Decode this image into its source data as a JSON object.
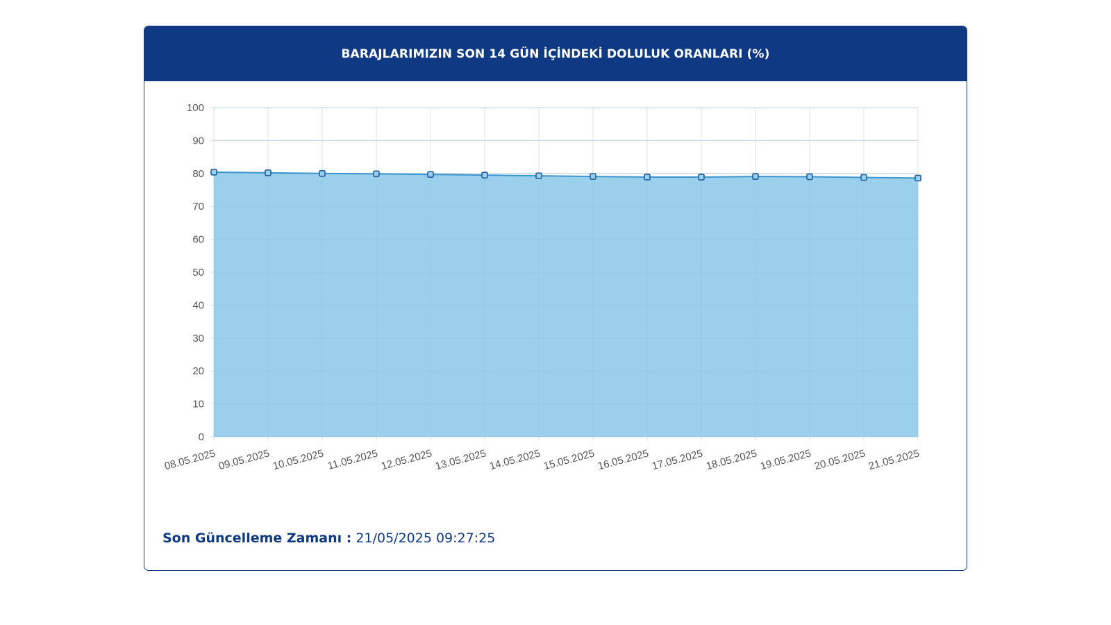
{
  "header": {
    "title": "BARAJLARIMIZIN SON 14 GÜN İÇİNDEKİ DOLULUK ORANLARI (%)"
  },
  "colors": {
    "header_bg": "#0f3a83",
    "area_fill": "#9bd0ec",
    "line": "#3a95cf",
    "marker_stroke": "#1f5f9c",
    "grid": "#e1e1e1",
    "tick_text": "#555555"
  },
  "chart_data": {
    "type": "area",
    "categories": [
      "08.05.2025",
      "09.05.2025",
      "10.05.2025",
      "11.05.2025",
      "12.05.2025",
      "13.05.2025",
      "14.05.2025",
      "15.05.2025",
      "16.05.2025",
      "17.05.2025",
      "18.05.2025",
      "19.05.2025",
      "20.05.2025",
      "21.05.2025"
    ],
    "series": [
      {
        "values": [
          80.4,
          80.2,
          80.0,
          79.9,
          79.7,
          79.5,
          79.3,
          79.1,
          78.9,
          78.9,
          79.1,
          79.0,
          78.8,
          78.6
        ]
      }
    ],
    "ylim": [
      0,
      100
    ],
    "yticks": [
      0,
      10,
      20,
      30,
      40,
      50,
      60,
      70,
      80,
      90,
      100
    ],
    "grid": true,
    "legend": "none"
  },
  "footer": {
    "label": "Son Güncelleme Zamanı :",
    "value": "21/05/2025 09:27:25"
  }
}
